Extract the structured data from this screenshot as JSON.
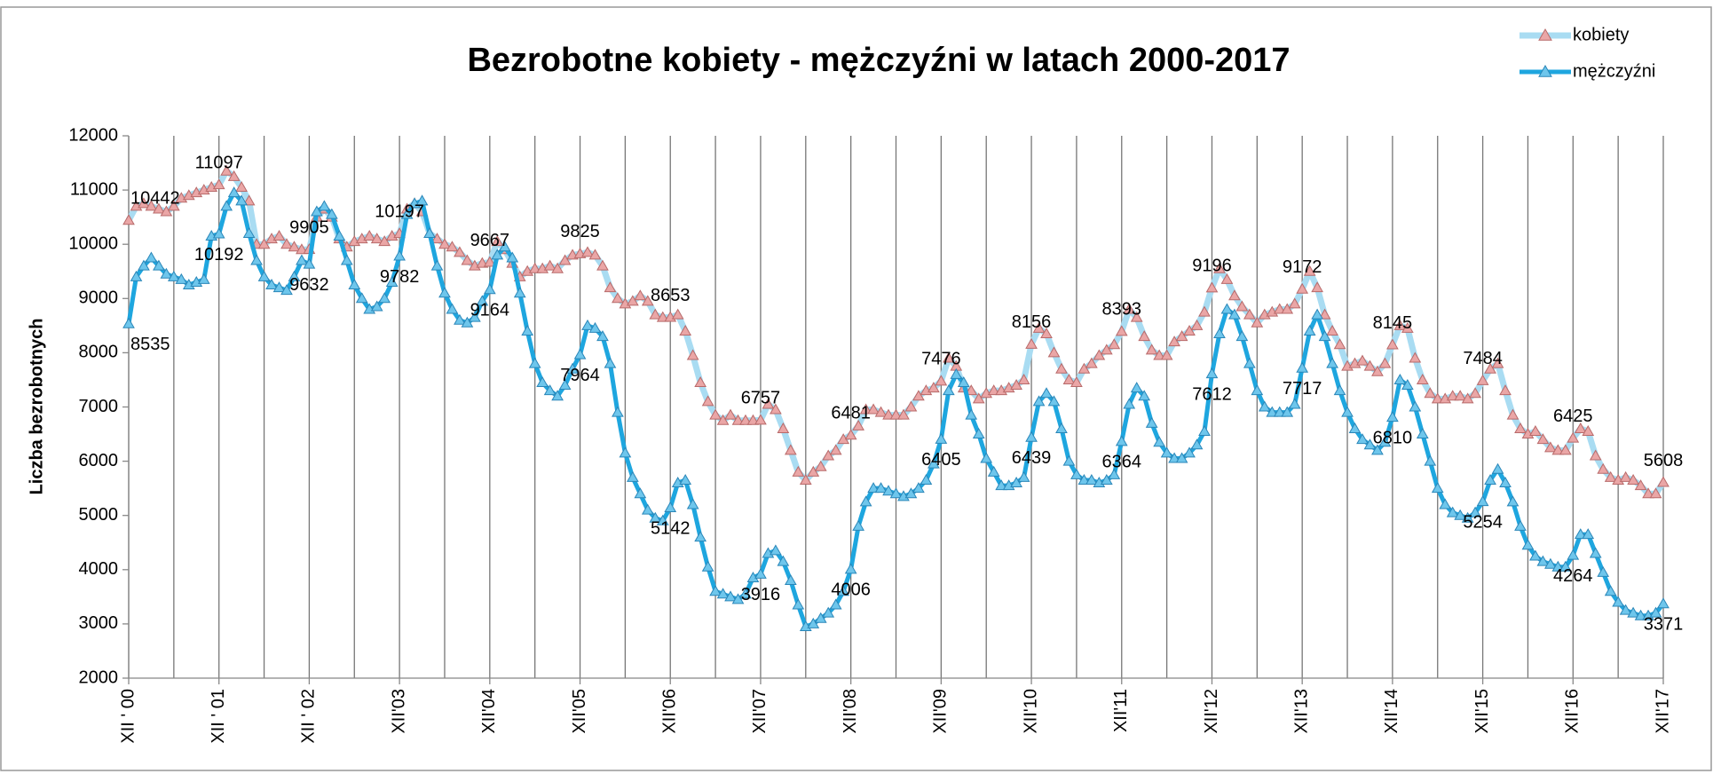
{
  "chart_data": {
    "type": "line",
    "title": "Bezrobotne kobiety - mężczyźni w latach 2000-2017",
    "y_label": "Liczba bezrobotnych",
    "categories": [
      "XII ' 00",
      null,
      null,
      null,
      null,
      null,
      null,
      null,
      null,
      null,
      null,
      null,
      "XII ' 01",
      null,
      null,
      null,
      null,
      null,
      null,
      null,
      null,
      null,
      null,
      null,
      "XII ' 02",
      null,
      null,
      null,
      null,
      null,
      null,
      null,
      null,
      null,
      null,
      null,
      "XII'03",
      null,
      null,
      null,
      null,
      null,
      null,
      null,
      null,
      null,
      null,
      null,
      "XII'04",
      null,
      null,
      null,
      null,
      null,
      null,
      null,
      null,
      null,
      null,
      null,
      "XII'05",
      null,
      null,
      null,
      null,
      null,
      null,
      null,
      null,
      null,
      null,
      null,
      "XII'06",
      null,
      null,
      null,
      null,
      null,
      null,
      null,
      null,
      null,
      null,
      null,
      "XII'07",
      null,
      null,
      null,
      null,
      null,
      null,
      null,
      null,
      null,
      null,
      null,
      "XII'08",
      null,
      null,
      null,
      null,
      null,
      null,
      null,
      null,
      null,
      null,
      null,
      "XII'09",
      null,
      null,
      null,
      null,
      null,
      null,
      null,
      null,
      null,
      null,
      null,
      "XII'10",
      null,
      null,
      null,
      null,
      null,
      null,
      null,
      null,
      null,
      null,
      null,
      "XII'11",
      null,
      null,
      null,
      null,
      null,
      null,
      null,
      null,
      null,
      null,
      null,
      "XII'12",
      null,
      null,
      null,
      null,
      null,
      null,
      null,
      null,
      null,
      null,
      null,
      "XII'13",
      null,
      null,
      null,
      null,
      null,
      null,
      null,
      null,
      null,
      null,
      null,
      "XII'14",
      null,
      null,
      null,
      null,
      null,
      null,
      null,
      null,
      null,
      null,
      null,
      "XII'15",
      null,
      null,
      null,
      null,
      null,
      null,
      null,
      null,
      null,
      null,
      null,
      "XII'16",
      null,
      null,
      null,
      null,
      null,
      null,
      null,
      null,
      null,
      null,
      null,
      "XII'17"
    ],
    "series": [
      {
        "name": "kobiety",
        "color": "#a9dcf2",
        "marker_color": "#eaa6a6",
        "marker_stroke": "#b86a6a",
        "width": 7,
        "values": [
          10442,
          10700,
          10750,
          10700,
          10650,
          10600,
          10700,
          10850,
          10900,
          10950,
          11000,
          11050,
          11097,
          11350,
          11250,
          11050,
          10800,
          10000,
          10000,
          10100,
          10150,
          10000,
          9950,
          9900,
          9905,
          10500,
          10650,
          10500,
          10100,
          9950,
          10050,
          10100,
          10150,
          10100,
          10050,
          10150,
          10197,
          10650,
          10750,
          10600,
          10200,
          10100,
          10000,
          9950,
          9850,
          9700,
          9600,
          9650,
          9667,
          10050,
          9900,
          9650,
          9400,
          9500,
          9550,
          9550,
          9600,
          9550,
          9700,
          9800,
          9825,
          9850,
          9800,
          9600,
          9200,
          9000,
          8900,
          8950,
          9050,
          8950,
          8700,
          8650,
          8653,
          8700,
          8400,
          7950,
          7450,
          7100,
          6850,
          6750,
          6850,
          6750,
          6750,
          6750,
          6757,
          7050,
          6950,
          6600,
          6200,
          5800,
          5650,
          5800,
          5900,
          6100,
          6200,
          6400,
          6481,
          6650,
          6950,
          6950,
          6900,
          6850,
          6850,
          6850,
          7000,
          7200,
          7300,
          7350,
          7476,
          7900,
          7750,
          7350,
          7300,
          7150,
          7250,
          7300,
          7300,
          7350,
          7400,
          7500,
          8156,
          8450,
          8350,
          8000,
          7700,
          7500,
          7450,
          7700,
          7800,
          7950,
          8050,
          8150,
          8393,
          8800,
          8650,
          8300,
          8050,
          7950,
          7950,
          8200,
          8300,
          8400,
          8500,
          8750,
          9196,
          9550,
          9350,
          9050,
          8850,
          8700,
          8550,
          8700,
          8750,
          8800,
          8800,
          8900,
          9172,
          9500,
          9200,
          8700,
          8400,
          8150,
          7750,
          7800,
          7850,
          7750,
          7650,
          7800,
          8145,
          8500,
          8450,
          7900,
          7500,
          7250,
          7150,
          7150,
          7200,
          7200,
          7150,
          7250,
          7484,
          7700,
          7800,
          7300,
          6850,
          6600,
          6500,
          6550,
          6400,
          6250,
          6200,
          6200,
          6425,
          6600,
          6550,
          6100,
          5850,
          5700,
          5650,
          5700,
          5650,
          5550,
          5400,
          5400,
          5608
        ],
        "labeled": [
          0,
          12,
          24,
          36,
          48,
          60,
          72,
          84,
          96,
          108,
          120,
          132,
          144,
          156,
          168,
          180,
          192,
          204
        ]
      },
      {
        "name": "mężczyźni",
        "color": "#1ea6df",
        "marker_color": "#6ec6ec",
        "marker_stroke": "#2a86b8",
        "width": 5,
        "values": [
          8535,
          9400,
          9600,
          9750,
          9600,
          9450,
          9400,
          9350,
          9250,
          9300,
          9350,
          10150,
          10192,
          10700,
          10950,
          10800,
          10200,
          9700,
          9400,
          9250,
          9200,
          9150,
          9400,
          9700,
          9632,
          10600,
          10700,
          10550,
          10150,
          9700,
          9250,
          9000,
          8800,
          8850,
          9000,
          9300,
          9782,
          10550,
          10750,
          10800,
          10200,
          9600,
          9100,
          8800,
          8600,
          8550,
          8650,
          8950,
          9164,
          9800,
          9950,
          9750,
          9100,
          8400,
          7800,
          7450,
          7300,
          7200,
          7400,
          7700,
          7964,
          8500,
          8450,
          8300,
          7800,
          6900,
          6150,
          5700,
          5400,
          5100,
          4950,
          4900,
          5142,
          5600,
          5650,
          5200,
          4600,
          4050,
          3600,
          3550,
          3500,
          3450,
          3550,
          3850,
          3916,
          4300,
          4350,
          4150,
          3800,
          3350,
          2950,
          3000,
          3100,
          3200,
          3350,
          3600,
          4006,
          4800,
          5250,
          5500,
          5500,
          5450,
          5400,
          5350,
          5400,
          5500,
          5650,
          5950,
          6405,
          7300,
          7600,
          7450,
          6850,
          6500,
          6050,
          5800,
          5550,
          5550,
          5600,
          5700,
          6439,
          7100,
          7250,
          7100,
          6600,
          6000,
          5750,
          5650,
          5650,
          5600,
          5650,
          5750,
          6364,
          7050,
          7350,
          7200,
          6700,
          6350,
          6150,
          6050,
          6050,
          6150,
          6300,
          6550,
          7612,
          8350,
          8800,
          8700,
          8300,
          7800,
          7300,
          7000,
          6900,
          6900,
          6900,
          7050,
          7717,
          8400,
          8700,
          8300,
          7800,
          7300,
          6900,
          6600,
          6400,
          6300,
          6200,
          6350,
          6810,
          7500,
          7400,
          7000,
          6500,
          6000,
          5500,
          5200,
          5050,
          5000,
          4950,
          5050,
          5254,
          5650,
          5850,
          5600,
          5250,
          4800,
          4450,
          4250,
          4150,
          4100,
          4050,
          4050,
          4264,
          4650,
          4650,
          4300,
          3950,
          3600,
          3400,
          3250,
          3200,
          3150,
          3150,
          3200,
          3371
        ],
        "labeled": [
          0,
          12,
          24,
          36,
          48,
          60,
          72,
          84,
          96,
          108,
          120,
          132,
          144,
          156,
          168,
          180,
          192,
          204
        ]
      }
    ],
    "ylim": [
      2000,
      12000
    ],
    "yticks": [
      2000,
      3000,
      4000,
      5000,
      6000,
      7000,
      8000,
      9000,
      10000,
      11000,
      12000
    ],
    "xgrid_step": 6,
    "legend": "top-right"
  }
}
